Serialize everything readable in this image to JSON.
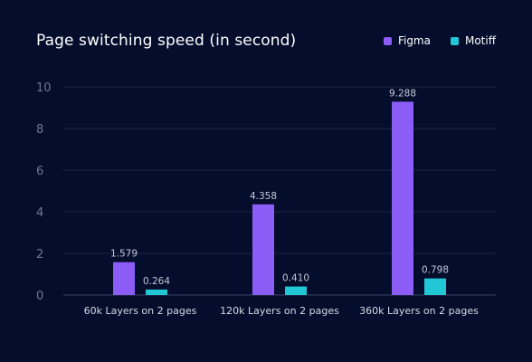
{
  "chart_data": {
    "type": "bar",
    "title": "Page switching speed (in second)",
    "xlabel": "",
    "ylabel": "",
    "categories": [
      "60k Layers on 2 pages",
      "120k Layers on 2 pages",
      "360k Layers on 2 pages"
    ],
    "series": [
      {
        "name": "Figma",
        "color": "#8b5cf6",
        "values": [
          1.579,
          4.358,
          9.288
        ]
      },
      {
        "name": "Motiff",
        "color": "#22c7d6",
        "values": [
          0.264,
          0.41,
          0.798
        ]
      }
    ],
    "ylim": [
      0,
      10
    ],
    "yticks": [
      0,
      2,
      4,
      6,
      8,
      10
    ],
    "grid": true,
    "legend_position": "top-right",
    "value_labels": [
      [
        "1.579",
        "4.358",
        "9.288"
      ],
      [
        "0.264",
        "0.410",
        "0.798"
      ]
    ]
  },
  "colors": {
    "background": "#040d2b",
    "grid": "#1d2745",
    "axis": "#3a4563"
  }
}
